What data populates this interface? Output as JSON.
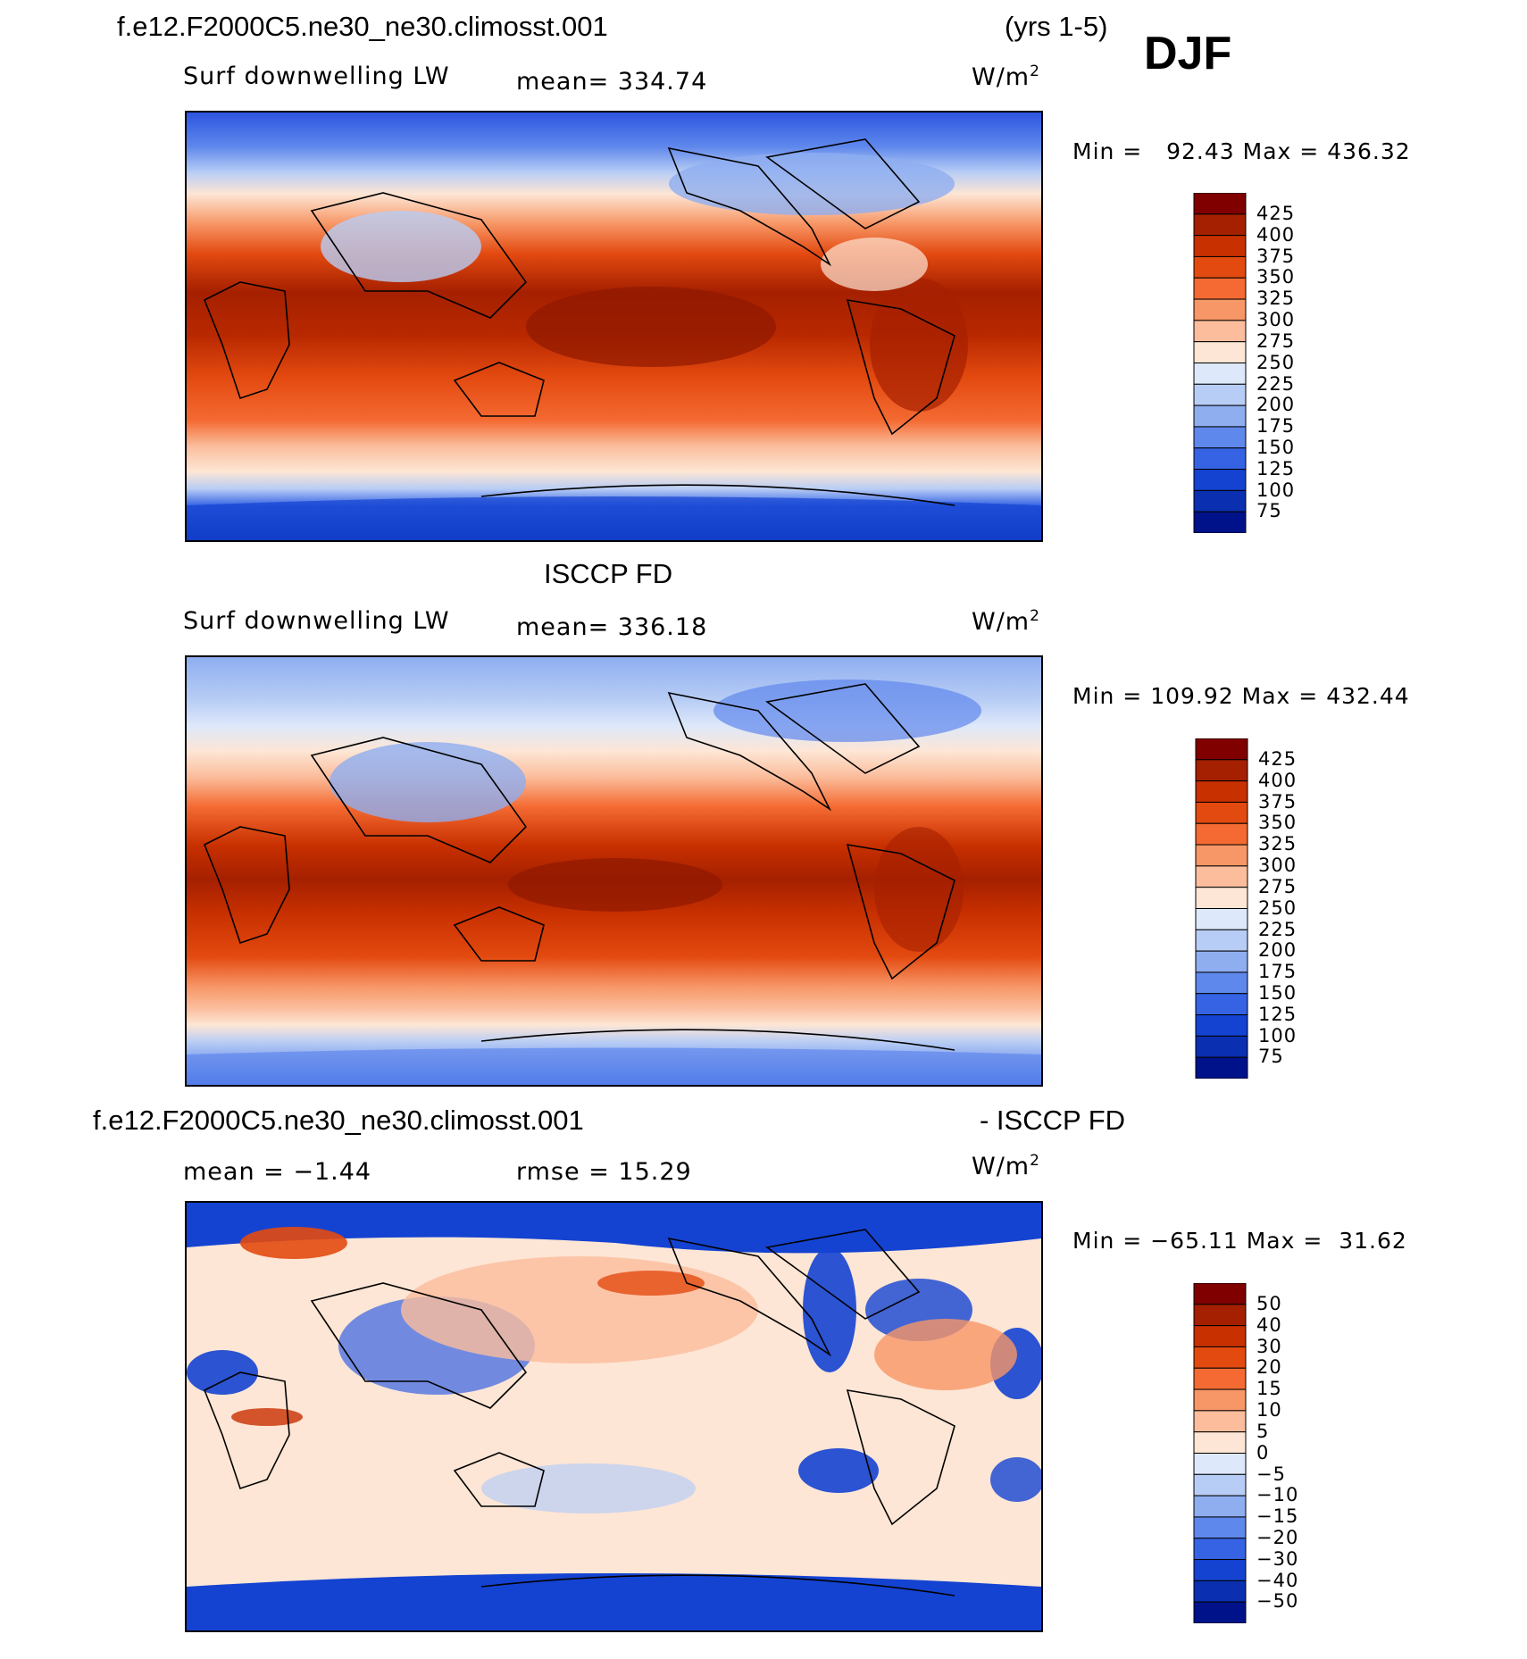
{
  "header": {
    "case_name": "f.e12.F2000C5.ne30_ne30.climosst.001",
    "years": "(yrs 1-5)",
    "season": "DJF"
  },
  "panels": [
    {
      "left_label": "Surf downwelling LW",
      "center_label": "mean= 334.74",
      "units": "W/m",
      "units_sup": "2",
      "min_label": "Min =",
      "min_value": "92.43",
      "max_label": "Max =",
      "max_value": "436.32"
    },
    {
      "title": "ISCCP FD",
      "left_label": "Surf downwelling LW",
      "center_label": "mean= 336.18",
      "units": "W/m",
      "units_sup": "2",
      "min_label": "Min =",
      "min_value": "109.92",
      "max_label": "Max =",
      "max_value": "432.44"
    },
    {
      "title_left": "f.e12.F2000C5.ne30_ne30.climosst.001",
      "title_right": "- ISCCP FD",
      "left_label": "mean =   −1.44",
      "center_label": "rmse =   15.29",
      "units": "W/m",
      "units_sup": "2",
      "min_label": "Min =",
      "min_value": "−65.11",
      "max_label": "Max =",
      "max_value": "31.62"
    }
  ],
  "chart_data": [
    {
      "type": "heatmap",
      "title": "f.e12.F2000C5.ne30_ne30.climosst.001 (yrs 1-5) DJF",
      "variable": "Surf downwelling LW",
      "units": "W/m2",
      "mean": 334.74,
      "min": 92.43,
      "max": 436.32,
      "colorbar_levels": [
        425,
        400,
        375,
        350,
        325,
        300,
        275,
        250,
        225,
        200,
        175,
        150,
        125,
        100,
        75
      ]
    },
    {
      "type": "heatmap",
      "title": "ISCCP FD",
      "variable": "Surf downwelling LW",
      "units": "W/m2",
      "mean": 336.18,
      "min": 109.92,
      "max": 432.44,
      "colorbar_levels": [
        425,
        400,
        375,
        350,
        325,
        300,
        275,
        250,
        225,
        200,
        175,
        150,
        125,
        100,
        75
      ]
    },
    {
      "type": "heatmap",
      "title": "f.e12.F2000C5.ne30_ne30.climosst.001 - ISCCP FD",
      "units": "W/m2",
      "mean": -1.44,
      "rmse": 15.29,
      "min": -65.11,
      "max": 31.62,
      "colorbar_levels": [
        "50",
        "40",
        "30",
        "20",
        "15",
        "10",
        "5",
        "0",
        "−5",
        "−10",
        "−15",
        "−20",
        "−30",
        "−40",
        "−50"
      ]
    }
  ],
  "colors": {
    "abs_scale": [
      "#800000",
      "#a52000",
      "#c83000",
      "#e34a10",
      "#f46a32",
      "#f79666",
      "#fbbd9c",
      "#fde6d5",
      "#ffffff",
      "#dde8fa",
      "#b8cdf5",
      "#8eaef0",
      "#5f88ec",
      "#3563e4",
      "#1443d2",
      "#0a2fb0",
      "#00128a"
    ],
    "diff_scale": [
      "#800000",
      "#a52000",
      "#c83000",
      "#e34a10",
      "#f46a32",
      "#f79666",
      "#fbbd9c",
      "#fde6d5",
      "#ffffff",
      "#dde8fa",
      "#b8cdf5",
      "#8eaef0",
      "#5f88ec",
      "#3563e4",
      "#1443d2",
      "#0a2fb0",
      "#00128a"
    ]
  }
}
